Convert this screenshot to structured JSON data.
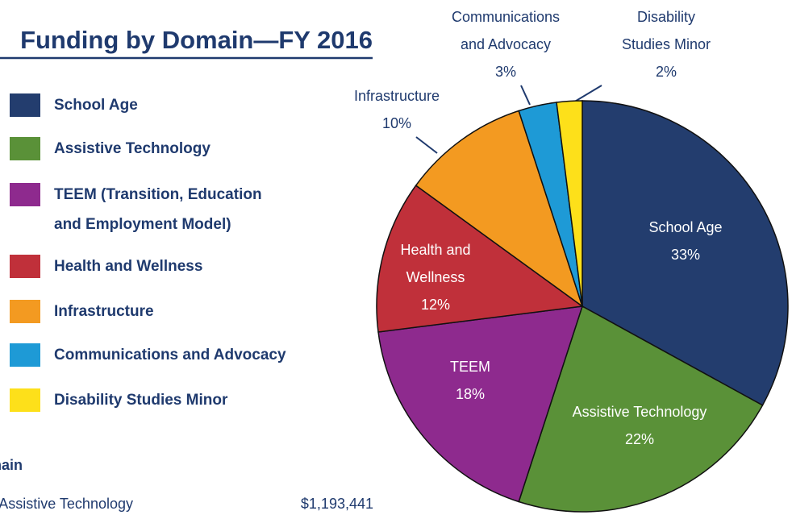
{
  "chart_data": {
    "type": "pie",
    "title": "Funding by Domain—FY 2016",
    "legend": [
      [
        "School Age"
      ],
      [
        "Assistive Technology"
      ],
      [
        "TEEM (Transition, Education",
        "and Employment Model)"
      ],
      [
        "Health and Wellness"
      ],
      [
        "Infrastructure"
      ],
      [
        "Communications and Advocacy"
      ],
      [
        "Disability Studies Minor"
      ]
    ],
    "slice_labels": [
      [
        "School Age"
      ],
      [
        "Assistive Technology"
      ],
      [
        "TEEM"
      ],
      [
        "Health and",
        "Wellness"
      ],
      [
        "Infrastructure"
      ],
      [
        "Communications",
        "and Advocacy"
      ],
      [
        "Disability",
        "Studies Minor"
      ]
    ],
    "values": [
      33,
      22,
      18,
      12,
      10,
      3,
      2
    ],
    "value_labels": [
      "33%",
      "22%",
      "18%",
      "12%",
      "10%",
      "3%",
      "2%"
    ],
    "colors": [
      "#233d6e",
      "#5a9138",
      "#8e2a8e",
      "#c0303a",
      "#f39a21",
      "#1e9ad6",
      "#fde01a"
    ],
    "table": {
      "header": "Domain",
      "rows": [
        [
          "Assistive Technology",
          "$1,193,441"
        ]
      ]
    }
  }
}
